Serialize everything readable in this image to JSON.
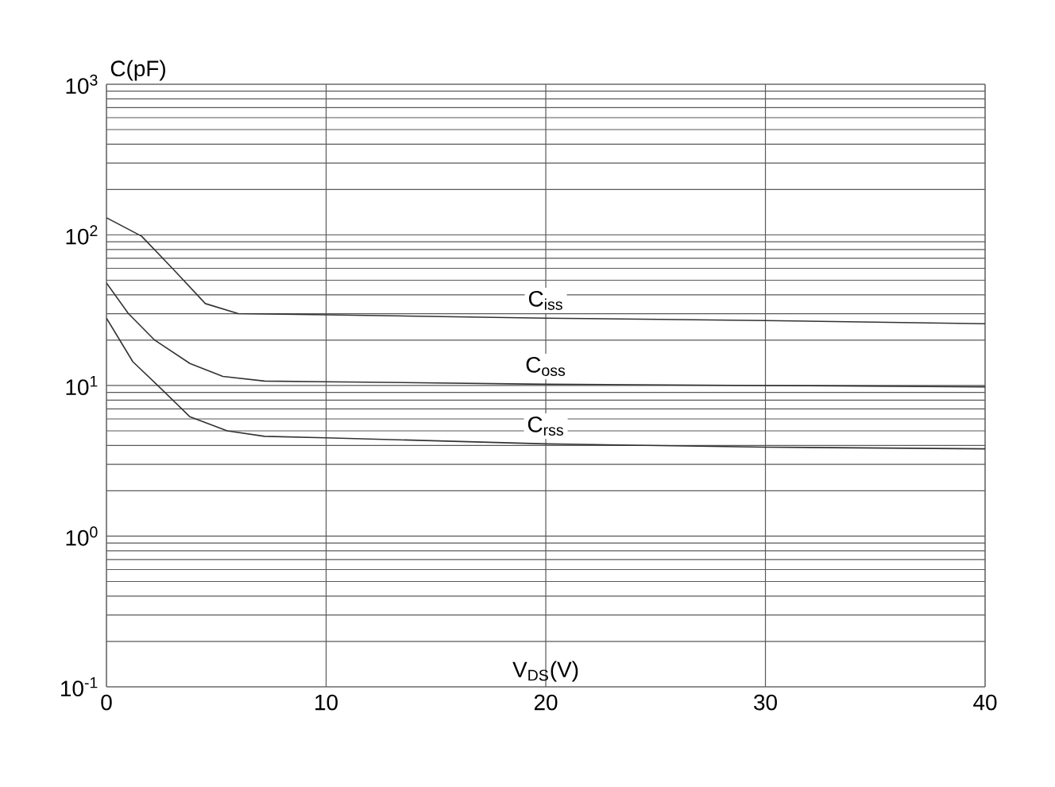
{
  "chart_data": {
    "type": "line",
    "xlabel": "V$_{DS}$(V)",
    "ylabel": "C(pF)",
    "log": "y",
    "grid": true,
    "xlim": [
      0,
      40
    ],
    "xticks": [
      0,
      10,
      20,
      30,
      40
    ],
    "ylim": [
      0.1,
      1000
    ],
    "yticks": [
      {
        "value": 0.1,
        "label": "10$^{-1}$"
      },
      {
        "value": 1,
        "label": "10$^{0}$"
      },
      {
        "value": 10,
        "label": "10$^{1}$"
      },
      {
        "value": 100,
        "label": "10$^{2}$"
      },
      {
        "value": 1000,
        "label": "10$^{3}$"
      }
    ],
    "series": [
      {
        "name": "C$_{iss}$",
        "color": "#333333",
        "x": [
          0,
          1.6,
          3,
          4.5,
          6,
          10,
          20,
          30,
          40
        ],
        "values": [
          130,
          98,
          60,
          35,
          30,
          29.5,
          28,
          27,
          25.7
        ]
      },
      {
        "name": "C$_{oss}$",
        "color": "#333333",
        "x": [
          0,
          1,
          2.2,
          3.8,
          5.3,
          7.2,
          10,
          20,
          30,
          40
        ],
        "values": [
          48,
          30,
          20,
          14,
          11.5,
          10.7,
          10.6,
          10.2,
          10,
          9.8
        ]
      },
      {
        "name": "C$_{rss}$",
        "color": "#333333",
        "x": [
          0,
          1.2,
          2.4,
          3.8,
          5.5,
          7.2,
          10,
          20,
          30,
          40
        ],
        "values": [
          28,
          14.4,
          9.8,
          6.2,
          5,
          4.6,
          4.5,
          4.1,
          3.9,
          3.8
        ]
      }
    ]
  }
}
